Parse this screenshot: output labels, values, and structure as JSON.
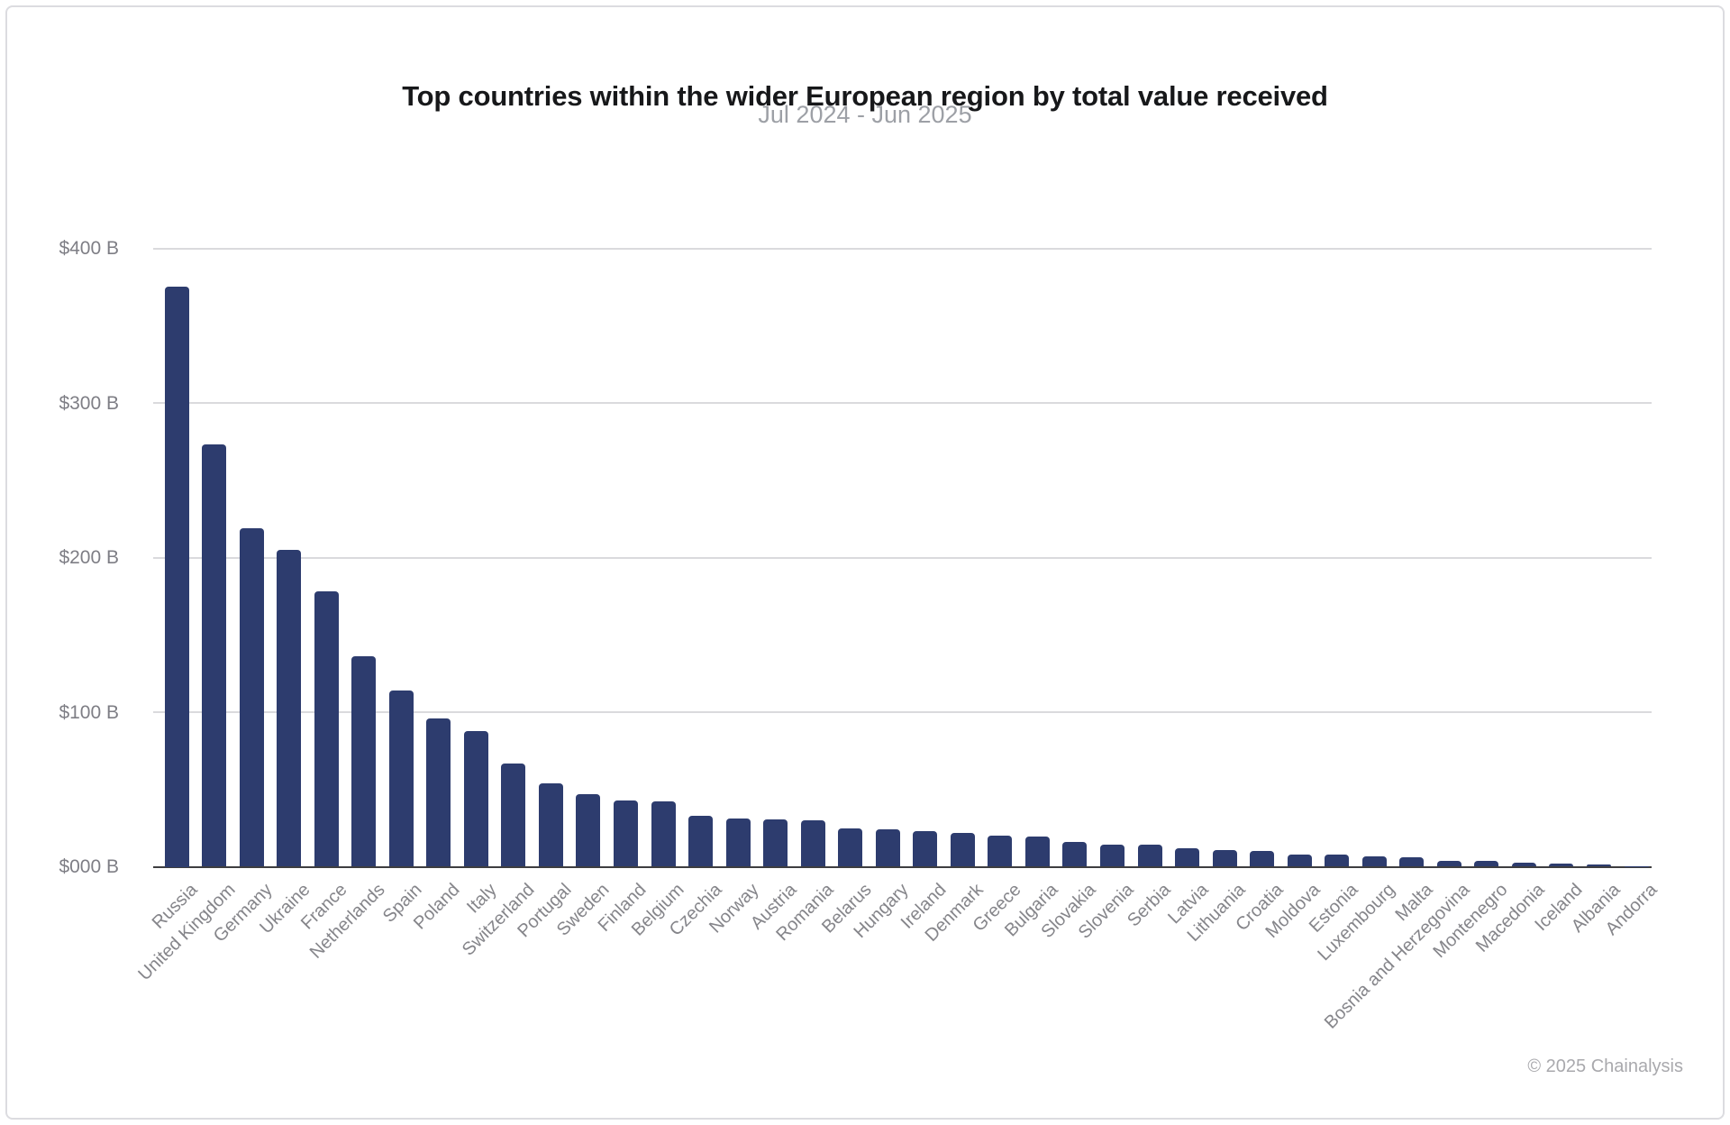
{
  "header": {
    "title": "Top countries within the wider European region by total value received",
    "subtitle": "Jul 2024 - Jun 2025"
  },
  "footer": {
    "copyright": "© 2025 Chainalysis"
  },
  "chart_data": {
    "type": "bar",
    "title": "Top countries within the wider European region by total value received",
    "subtitle": "Jul 2024 - Jun 2025",
    "unit": "USD billions",
    "xlabel": "",
    "ylabel": "",
    "ylim": [
      0,
      400
    ],
    "grid": "horizontal",
    "legend": "none",
    "bar_color": "#2d3c6e",
    "y_ticks": [
      {
        "value": 400,
        "label": "$400 B"
      },
      {
        "value": 300,
        "label": "$300 B"
      },
      {
        "value": 200,
        "label": "$200 B"
      },
      {
        "value": 100,
        "label": "$100 B"
      },
      {
        "value": 0,
        "label": "$000 B"
      }
    ],
    "categories": [
      "Russia",
      "United Kingdom",
      "Germany",
      "Ukraine",
      "France",
      "Netherlands",
      "Spain",
      "Poland",
      "Italy",
      "Switzerland",
      "Portugal",
      "Sweden",
      "Finland",
      "Belgium",
      "Czechia",
      "Norway",
      "Austria",
      "Romania",
      "Belarus",
      "Hungary",
      "Ireland",
      "Denmark",
      "Greece",
      "Bulgaria",
      "Slovakia",
      "Slovenia",
      "Serbia",
      "Latvia",
      "Lithuania",
      "Croatia",
      "Moldova",
      "Estonia",
      "Luxembourg",
      "Malta",
      "Bosnia and Herzegovina",
      "Montenegro",
      "Macedonia",
      "Iceland",
      "Albania",
      "Andorra"
    ],
    "values": [
      375,
      273,
      219,
      205,
      178,
      136,
      114,
      96,
      88,
      67,
      54,
      47,
      43,
      42,
      33,
      31,
      30.5,
      30,
      24.5,
      24,
      23,
      22,
      20,
      19.5,
      16,
      14,
      14,
      12,
      10.5,
      10,
      8,
      8,
      6.5,
      6,
      3.5,
      3.5,
      2.8,
      1.8,
      1.6,
      0.2
    ]
  },
  "colors": {
    "bar": "#2d3c6e",
    "gridline": "#dadadd",
    "axis": "#3e3e40",
    "title": "#17181a",
    "subtitle": "#9da0a6",
    "tick_text": "#7e7e85",
    "label_text": "#85858a"
  }
}
